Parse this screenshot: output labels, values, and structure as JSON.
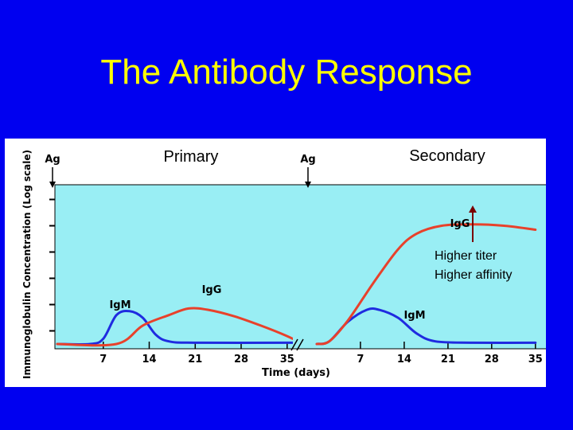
{
  "slide": {
    "title": "The Antibody Response"
  },
  "chart_data": {
    "type": "line",
    "title": "",
    "xlabel": "Time (days)",
    "ylabel": "Immunoglobulin Concentration (Log scale)",
    "y_scale": "log",
    "grid": false,
    "legend": "none",
    "colors": {
      "IgG": "#e8412b",
      "IgM": "#1f2be0",
      "plot_bg": "#99eef4"
    },
    "panels": [
      {
        "name": "Primary",
        "antigen_label": "Ag",
        "antigen_day": 0,
        "x_ticks": [
          7,
          14,
          21,
          28,
          35
        ],
        "series": [
          {
            "name": "IgM",
            "points": [
              [
                0,
                0
              ],
              [
                5,
                0
              ],
              [
                7,
                0.2
              ],
              [
                9,
                1.1
              ],
              [
                11,
                1.25
              ],
              [
                13,
                1.0
              ],
              [
                15,
                0.35
              ],
              [
                17,
                0.1
              ],
              [
                21,
                0.05
              ],
              [
                35,
                0.05
              ],
              [
                37,
                0.05
              ]
            ]
          },
          {
            "name": "IgG",
            "points": [
              [
                0,
                0
              ],
              [
                9,
                0
              ],
              [
                13,
                0.7
              ],
              [
                17,
                1.1
              ],
              [
                20,
                1.35
              ],
              [
                23,
                1.3
              ],
              [
                27,
                1.05
              ],
              [
                31,
                0.7
              ],
              [
                35,
                0.3
              ],
              [
                37,
                0.05
              ]
            ]
          }
        ]
      },
      {
        "name": "Secondary",
        "antigen_label": "Ag",
        "antigen_day": 0,
        "x_ticks": [
          7,
          14,
          21,
          28,
          35
        ],
        "annotations": [
          "Higher titer",
          "Higher affinity"
        ],
        "series": [
          {
            "name": "IgM",
            "points": [
              [
                0,
                0
              ],
              [
                2,
                0.1
              ],
              [
                5,
                0.85
              ],
              [
                8,
                1.3
              ],
              [
                10,
                1.3
              ],
              [
                13,
                1.0
              ],
              [
                16,
                0.4
              ],
              [
                19,
                0.1
              ],
              [
                25,
                0.05
              ],
              [
                35,
                0.05
              ]
            ]
          },
          {
            "name": "IgG",
            "points": [
              [
                0,
                0
              ],
              [
                2,
                0.1
              ],
              [
                5,
                0.9
              ],
              [
                9,
                2.3
              ],
              [
                13,
                3.6
              ],
              [
                16,
                4.2
              ],
              [
                20,
                4.5
              ],
              [
                25,
                4.55
              ],
              [
                30,
                4.5
              ],
              [
                35,
                4.35
              ]
            ]
          }
        ]
      }
    ]
  }
}
